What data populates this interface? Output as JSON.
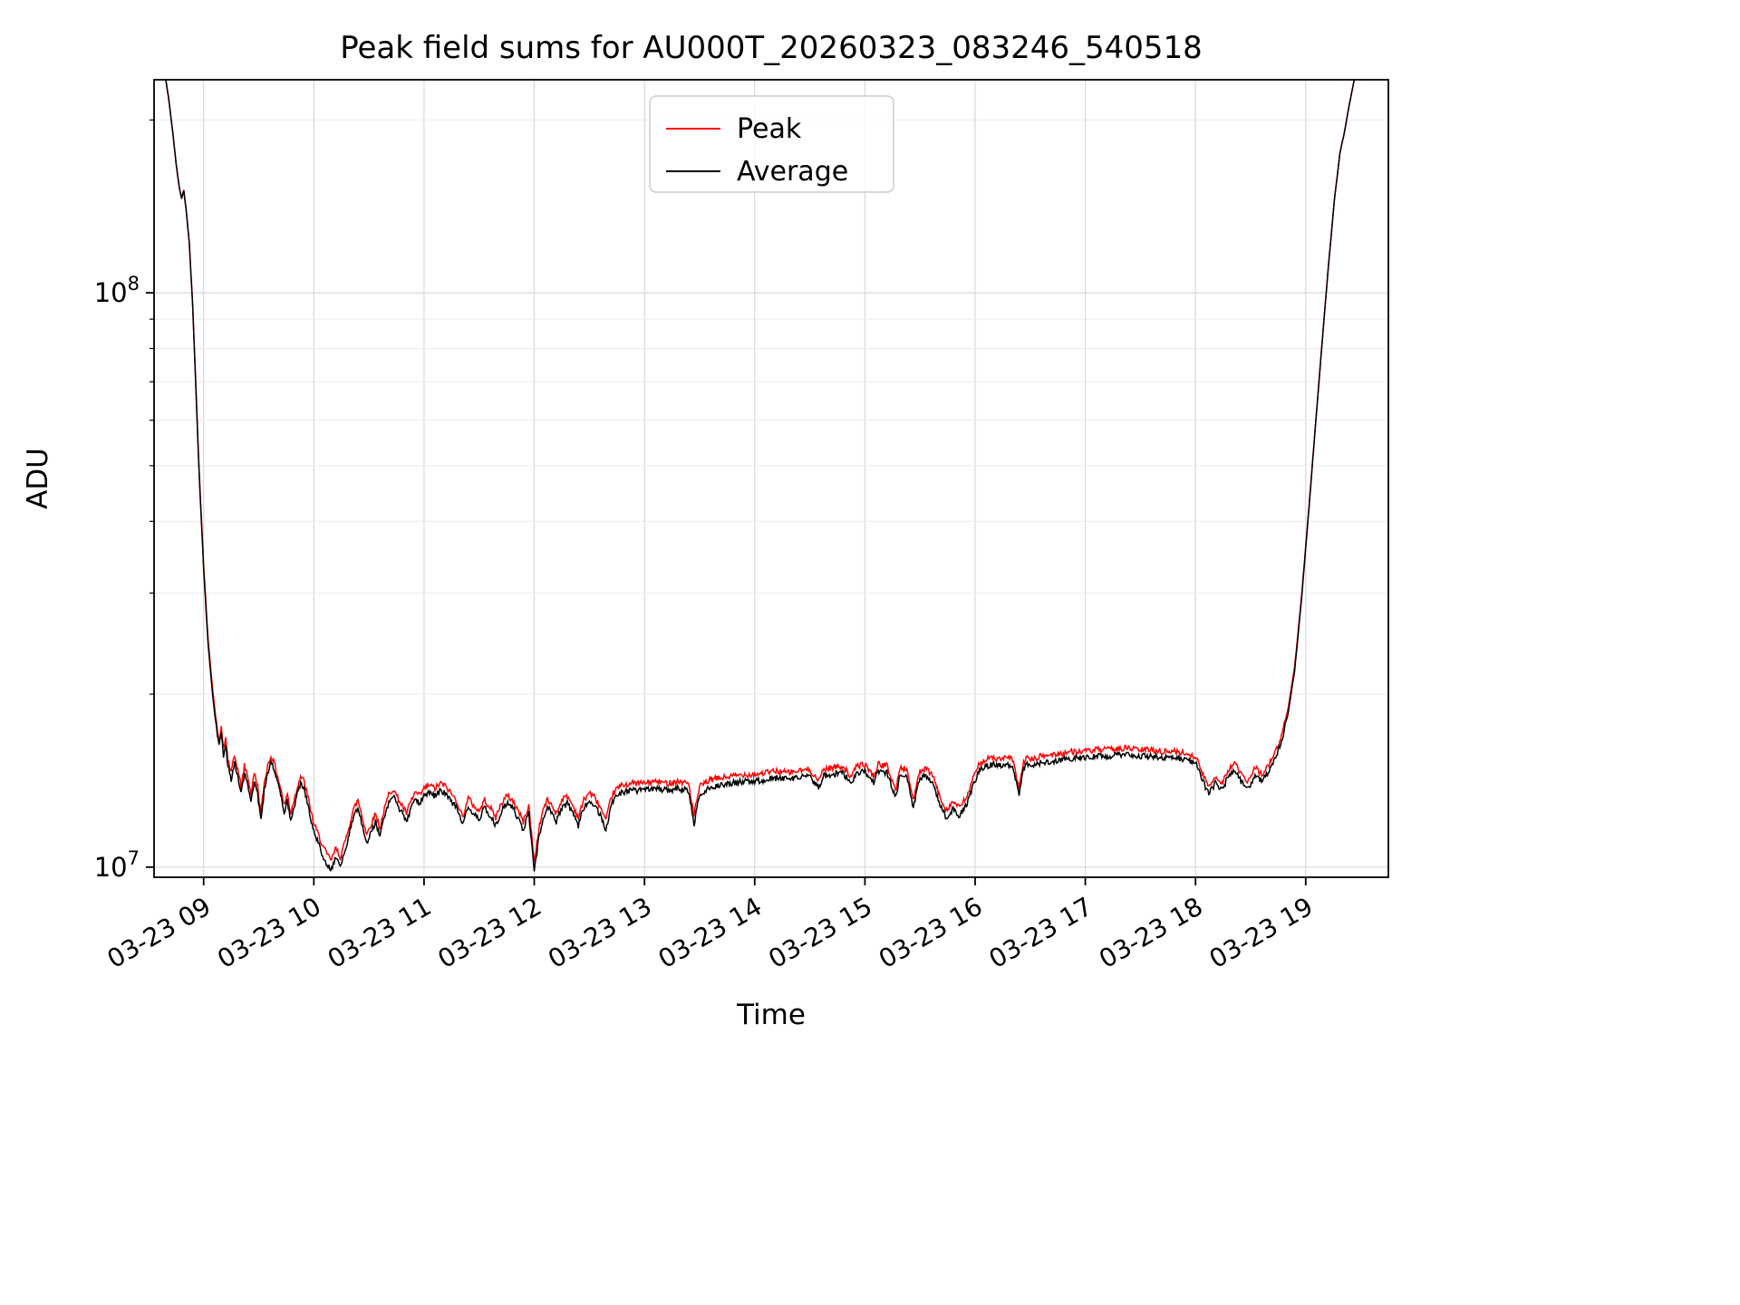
{
  "figure": {
    "background": "#ffffff"
  },
  "colors": {
    "grid_major": "#d9d9d9",
    "grid_minor": "#ebebeb",
    "spine": "#000000",
    "tick": "#000000",
    "legend_border": "#cccccc",
    "legend_background": "#ffffff"
  },
  "chart_data": {
    "type": "line",
    "title": "Peak field sums for AU000T_20260323_083246_540518",
    "xlabel": "Time",
    "ylabel": "ADU",
    "yscale": "log",
    "ylim": [
      9600000,
      235000000
    ],
    "xlim_hours": [
      8.55,
      19.75
    ],
    "grid": "both",
    "legend_position": "upper center",
    "x_tick_hours": [
      9,
      10,
      11,
      12,
      13,
      14,
      15,
      16,
      17,
      18,
      19
    ],
    "x_tick_labels": [
      "03-23 09",
      "03-23 10",
      "03-23 11",
      "03-23 12",
      "03-23 13",
      "03-23 14",
      "03-23 15",
      "03-23 16",
      "03-23 17",
      "03-23 18",
      "03-23 19"
    ],
    "y_ticks": [
      10000000,
      100000000
    ],
    "noise": {
      "amplitude_pct_low": 1.2,
      "amplitude_pct_high": 0.15,
      "low_threshold": 18000000
    },
    "series": [
      {
        "name": "Peak",
        "color": "#ff0000",
        "column": 2
      },
      {
        "name": "Average",
        "color": "#000000",
        "column": 1
      }
    ],
    "points": [
      [
        8.57,
        270000000.0,
        270000000.0
      ],
      [
        8.6,
        260000000.0,
        260000000.0
      ],
      [
        8.64,
        245000000.0,
        245000000.0
      ],
      [
        8.68,
        220000000.0,
        220000000.0
      ],
      [
        8.72,
        190000000.0,
        190000000.0
      ],
      [
        8.75,
        168000000.0,
        168000000.0
      ],
      [
        8.78,
        152000000.0,
        152000000.0
      ],
      [
        8.8,
        146000000.0,
        146000000.0
      ],
      [
        8.82,
        151000000.0,
        151000000.0
      ],
      [
        8.84,
        140000000.0,
        140000000.0
      ],
      [
        8.87,
        122000000.0,
        122000000.0
      ],
      [
        8.9,
        95000000.0,
        95200000.0
      ],
      [
        8.93,
        68000000.0,
        68200000.0
      ],
      [
        8.96,
        48000000.0,
        48500000.0
      ],
      [
        9.0,
        33000000.0,
        33500000.0
      ],
      [
        9.04,
        24500000.0,
        25000000.0
      ],
      [
        9.08,
        20000000.0,
        20500000.0
      ],
      [
        9.11,
        17800000.0,
        18200000.0
      ],
      [
        9.14,
        16200000.0,
        16600000.0
      ],
      [
        9.16,
        17000000.0,
        17400000.0
      ],
      [
        9.18,
        15600000.0,
        16000000.0
      ],
      [
        9.2,
        16400000.0,
        16800000.0
      ],
      [
        9.22,
        15000000.0,
        15400000.0
      ],
      [
        9.25,
        14200000.0,
        14600000.0
      ],
      [
        9.28,
        15200000.0,
        15600000.0
      ],
      [
        9.31,
        14400000.0,
        14800000.0
      ],
      [
        9.34,
        13400000.0,
        13800000.0
      ],
      [
        9.37,
        14600000.0,
        15000000.0
      ],
      [
        9.4,
        14000000.0,
        14400000.0
      ],
      [
        9.43,
        13000000.0,
        13400000.0
      ],
      [
        9.46,
        14200000.0,
        14600000.0
      ],
      [
        9.49,
        13400000.0,
        13800000.0
      ],
      [
        9.52,
        12000000.0,
        12400000.0
      ],
      [
        9.55,
        13600000.0,
        14000000.0
      ],
      [
        9.58,
        14600000.0,
        15000000.0
      ],
      [
        9.61,
        15200000.0,
        15600000.0
      ],
      [
        9.64,
        14800000.0,
        15200000.0
      ],
      [
        9.67,
        14000000.0,
        14400000.0
      ],
      [
        9.7,
        13300000.0,
        13700000.0
      ],
      [
        9.73,
        12400000.0,
        12800000.0
      ],
      [
        9.76,
        13000000.0,
        13400000.0
      ],
      [
        9.79,
        12000000.0,
        12400000.0
      ],
      [
        9.82,
        12700000.0,
        13100000.0
      ],
      [
        9.85,
        13400000.0,
        13800000.0
      ],
      [
        9.88,
        14000000.0,
        14400000.0
      ],
      [
        9.91,
        13700000.0,
        14100000.0
      ],
      [
        9.94,
        13000000.0,
        13400000.0
      ],
      [
        9.97,
        12200000.0,
        12600000.0
      ],
      [
        10.0,
        11500000.0,
        11900000.0
      ],
      [
        10.04,
        11000000.0,
        11400000.0
      ],
      [
        10.08,
        10500000.0,
        10900000.0
      ],
      [
        10.12,
        10100000.0,
        10500000.0
      ],
      [
        10.16,
        9900000.0,
        10300000.0
      ],
      [
        10.2,
        10400000.0,
        10800000.0
      ],
      [
        10.24,
        10000000.0,
        10400000.0
      ],
      [
        10.28,
        10600000.0,
        11000000.0
      ],
      [
        10.32,
        11400000.0,
        11800000.0
      ],
      [
        10.36,
        12200000.0,
        12600000.0
      ],
      [
        10.4,
        12700000.0,
        13100000.0
      ],
      [
        10.44,
        11800000.0,
        12200000.0
      ],
      [
        10.48,
        11000000.0,
        11400000.0
      ],
      [
        10.52,
        11500000.0,
        11900000.0
      ],
      [
        10.56,
        12000000.0,
        12400000.0
      ],
      [
        10.6,
        11300000.0,
        11700000.0
      ],
      [
        10.64,
        12200000.0,
        12600000.0
      ],
      [
        10.68,
        13000000.0,
        13400000.0
      ],
      [
        10.72,
        13300000.0,
        13700000.0
      ],
      [
        10.76,
        12800000.0,
        13200000.0
      ],
      [
        10.8,
        12400000.0,
        12800000.0
      ],
      [
        10.84,
        12000000.0,
        12400000.0
      ],
      [
        10.88,
        12600000.0,
        13000000.0
      ],
      [
        10.92,
        13100000.0,
        13500000.0
      ],
      [
        10.96,
        12900000.0,
        13300000.0
      ],
      [
        11.0,
        13300000.0,
        13700000.0
      ],
      [
        11.05,
        13500000.0,
        13900000.0
      ],
      [
        11.1,
        13300000.0,
        13700000.0
      ],
      [
        11.15,
        13600000.0,
        14000000.0
      ],
      [
        11.2,
        13400000.0,
        13800000.0
      ],
      [
        11.25,
        13000000.0,
        13400000.0
      ],
      [
        11.3,
        12600000.0,
        13000000.0
      ],
      [
        11.35,
        11800000.0,
        12200000.0
      ],
      [
        11.4,
        12800000.0,
        13200000.0
      ],
      [
        11.45,
        12400000.0,
        12800000.0
      ],
      [
        11.5,
        12100000.0,
        12500000.0
      ],
      [
        11.55,
        12700000.0,
        13100000.0
      ],
      [
        11.6,
        12300000.0,
        12700000.0
      ],
      [
        11.65,
        11800000.0,
        12200000.0
      ],
      [
        11.7,
        12500000.0,
        12900000.0
      ],
      [
        11.75,
        12900000.0,
        13300000.0
      ],
      [
        11.8,
        12700000.0,
        13100000.0
      ],
      [
        11.85,
        12200000.0,
        12600000.0
      ],
      [
        11.9,
        11600000.0,
        12000000.0
      ],
      [
        11.95,
        12400000.0,
        12800000.0
      ],
      [
        12.0,
        9800000.0,
        10200000.0
      ],
      [
        12.04,
        11200000.0,
        11600000.0
      ],
      [
        12.08,
        12200000.0,
        12600000.0
      ],
      [
        12.12,
        12700000.0,
        13100000.0
      ],
      [
        12.16,
        12400000.0,
        12800000.0
      ],
      [
        12.2,
        12000000.0,
        12400000.0
      ],
      [
        12.25,
        12700000.0,
        13100000.0
      ],
      [
        12.3,
        12900000.0,
        13300000.0
      ],
      [
        12.35,
        12400000.0,
        12800000.0
      ],
      [
        12.4,
        11800000.0,
        12200000.0
      ],
      [
        12.45,
        12700000.0,
        13100000.0
      ],
      [
        12.5,
        13100000.0,
        13500000.0
      ],
      [
        12.55,
        12800000.0,
        13200000.0
      ],
      [
        12.6,
        12300000.0,
        12700000.0
      ],
      [
        12.65,
        11600000.0,
        12000000.0
      ],
      [
        12.7,
        12900000.0,
        13300000.0
      ],
      [
        12.75,
        13300000.0,
        13700000.0
      ],
      [
        12.8,
        13500000.0,
        13900000.0
      ],
      [
        12.9,
        13600000.0,
        14000000.0
      ],
      [
        13.0,
        13600000.0,
        14000000.0
      ],
      [
        13.1,
        13700000.0,
        14100000.0
      ],
      [
        13.2,
        13600000.0,
        14000000.0
      ],
      [
        13.3,
        13700000.0,
        14100000.0
      ],
      [
        13.4,
        13600000.0,
        14000000.0
      ],
      [
        13.45,
        11900000.0,
        12300000.0
      ],
      [
        13.5,
        13400000.0,
        13800000.0
      ],
      [
        13.6,
        13800000.0,
        14200000.0
      ],
      [
        13.7,
        13900000.0,
        14300000.0
      ],
      [
        13.8,
        14000000.0,
        14400000.0
      ],
      [
        13.9,
        14100000.0,
        14500000.0
      ],
      [
        14.0,
        14100000.0,
        14500000.0
      ],
      [
        14.1,
        14200000.0,
        14600000.0
      ],
      [
        14.2,
        14300000.0,
        14700000.0
      ],
      [
        14.3,
        14200000.0,
        14600000.0
      ],
      [
        14.4,
        14300000.0,
        14700000.0
      ],
      [
        14.5,
        14400000.0,
        14800000.0
      ],
      [
        14.58,
        13700000.0,
        14100000.0
      ],
      [
        14.62,
        14400000.0,
        14800000.0
      ],
      [
        14.7,
        14500000.0,
        14900000.0
      ],
      [
        14.8,
        14600000.0,
        15000000.0
      ],
      [
        14.88,
        13900000.0,
        14300000.0
      ],
      [
        14.92,
        14600000.0,
        15000000.0
      ],
      [
        15.0,
        14700000.0,
        15100000.0
      ],
      [
        15.08,
        14000000.0,
        14400000.0
      ],
      [
        15.12,
        14700000.0,
        15100000.0
      ],
      [
        15.2,
        14600000.0,
        15000000.0
      ],
      [
        15.28,
        13200000.0,
        13600000.0
      ],
      [
        15.32,
        14500000.0,
        14900000.0
      ],
      [
        15.38,
        14400000.0,
        14800000.0
      ],
      [
        15.44,
        12700000.0,
        13100000.0
      ],
      [
        15.5,
        14300000.0,
        14700000.0
      ],
      [
        15.56,
        14400000.0,
        14800000.0
      ],
      [
        15.62,
        14000000.0,
        14400000.0
      ],
      [
        15.68,
        12800000.0,
        13200000.0
      ],
      [
        15.74,
        12200000.0,
        12600000.0
      ],
      [
        15.8,
        12600000.0,
        13000000.0
      ],
      [
        15.86,
        12300000.0,
        12700000.0
      ],
      [
        15.92,
        12800000.0,
        13200000.0
      ],
      [
        15.98,
        13800000.0,
        14200000.0
      ],
      [
        16.04,
        14800000.0,
        15200000.0
      ],
      [
        16.1,
        15000000.0,
        15400000.0
      ],
      [
        16.16,
        15100000.0,
        15500000.0
      ],
      [
        16.22,
        15000000.0,
        15400000.0
      ],
      [
        16.28,
        15100000.0,
        15500000.0
      ],
      [
        16.34,
        15000000.0,
        15400000.0
      ],
      [
        16.4,
        13300000.0,
        13700000.0
      ],
      [
        16.44,
        14900000.0,
        15300000.0
      ],
      [
        16.48,
        15100000.0,
        15500000.0
      ],
      [
        16.54,
        15000000.0,
        15400000.0
      ],
      [
        16.6,
        15200000.0,
        15600000.0
      ],
      [
        16.7,
        15300000.0,
        15700000.0
      ],
      [
        16.8,
        15400000.0,
        15800000.0
      ],
      [
        16.9,
        15500000.0,
        15900000.0
      ],
      [
        17.0,
        15500000.0,
        15900000.0
      ],
      [
        17.1,
        15600000.0,
        16000000.0
      ],
      [
        17.2,
        15600000.0,
        16000000.0
      ],
      [
        17.3,
        15700000.0,
        16100000.0
      ],
      [
        17.4,
        15700000.0,
        16100000.0
      ],
      [
        17.5,
        15600000.0,
        16000000.0
      ],
      [
        17.6,
        15600000.0,
        16000000.0
      ],
      [
        17.7,
        15500000.0,
        15900000.0
      ],
      [
        17.8,
        15500000.0,
        15900000.0
      ],
      [
        17.9,
        15400000.0,
        15800000.0
      ],
      [
        18.0,
        15200000.0,
        15600000.0
      ],
      [
        18.06,
        14200000.0,
        14600000.0
      ],
      [
        18.12,
        13400000.0,
        13800000.0
      ],
      [
        18.18,
        14000000.0,
        14400000.0
      ],
      [
        18.24,
        13600000.0,
        14000000.0
      ],
      [
        18.3,
        14400000.0,
        14800000.0
      ],
      [
        18.36,
        14800000.0,
        15200000.0
      ],
      [
        18.42,
        14000000.0,
        14400000.0
      ],
      [
        18.48,
        13700000.0,
        14100000.0
      ],
      [
        18.54,
        14500000.0,
        14900000.0
      ],
      [
        18.6,
        14100000.0,
        14500000.0
      ],
      [
        18.66,
        14600000.0,
        15000000.0
      ],
      [
        18.72,
        15400000.0,
        15800000.0
      ],
      [
        18.78,
        16500000.0,
        16900000.0
      ],
      [
        18.84,
        18500000.0,
        18900000.0
      ],
      [
        18.9,
        22000000.0,
        22400000.0
      ],
      [
        18.96,
        29000000.0,
        29300000.0
      ],
      [
        19.02,
        40000000.0,
        40300000.0
      ],
      [
        19.08,
        56000000.0,
        56200000.0
      ],
      [
        19.14,
        78000000.0,
        78200000.0
      ],
      [
        19.2,
        108000000.0,
        108000000.0
      ],
      [
        19.26,
        145000000.0,
        145000000.0
      ],
      [
        19.31,
        175000000.0,
        175000000.0
      ],
      [
        19.35,
        190000000.0,
        190000000.0
      ],
      [
        19.4,
        215000000.0,
        215000000.0
      ],
      [
        19.45,
        240000000.0,
        240000000.0
      ],
      [
        19.5,
        260000000.0,
        260000000.0
      ],
      [
        19.55,
        275000000.0,
        275000000.0
      ]
    ]
  }
}
